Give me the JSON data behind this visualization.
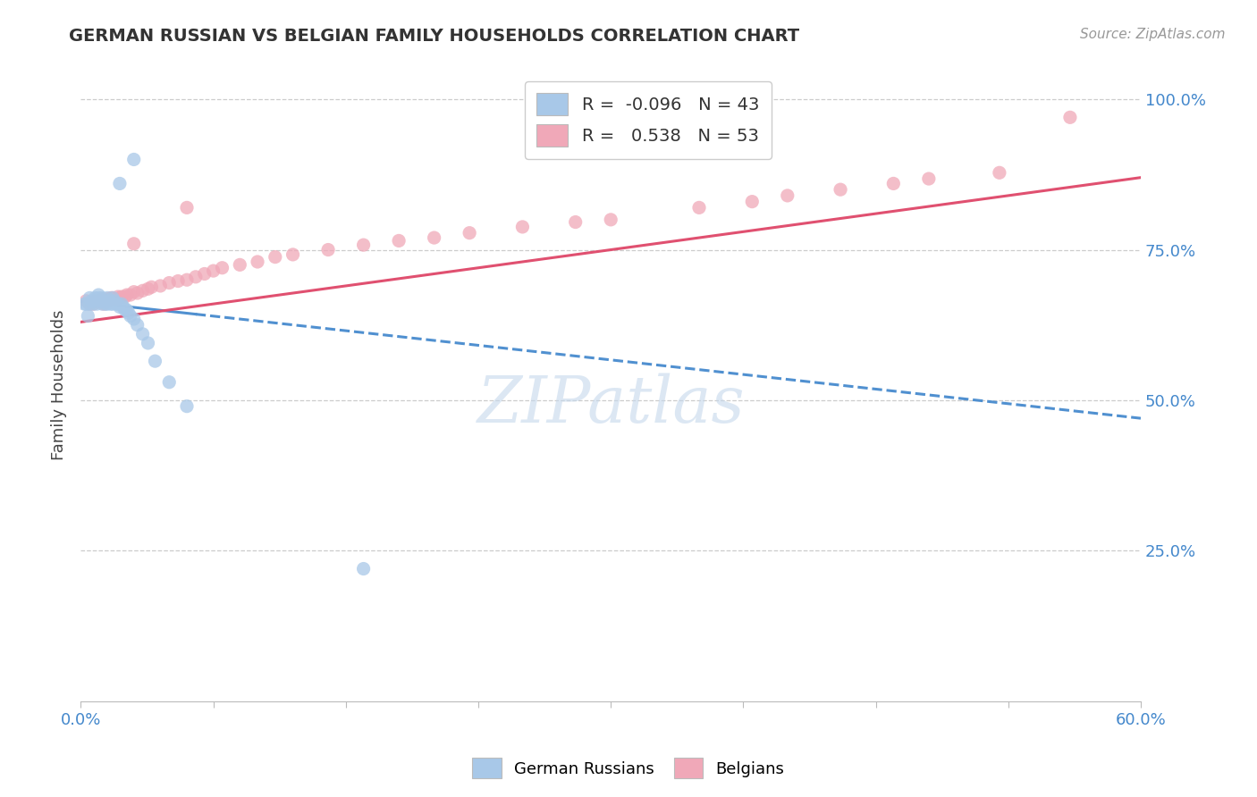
{
  "title": "GERMAN RUSSIAN VS BELGIAN FAMILY HOUSEHOLDS CORRELATION CHART",
  "source": "Source: ZipAtlas.com",
  "ylabel": "Family Households",
  "blue_color": "#a8c8e8",
  "pink_color": "#f0a8b8",
  "trend_blue_color": "#5090d0",
  "trend_pink_color": "#e05070",
  "watermark": "ZIPatlas",
  "blue_scatter_x": [
    0.002,
    0.003,
    0.004,
    0.005,
    0.005,
    0.006,
    0.007,
    0.008,
    0.008,
    0.009,
    0.01,
    0.01,
    0.011,
    0.012,
    0.012,
    0.013,
    0.014,
    0.015,
    0.015,
    0.016,
    0.017,
    0.018,
    0.018,
    0.019,
    0.02,
    0.021,
    0.022,
    0.023,
    0.024,
    0.025,
    0.026,
    0.027,
    0.028,
    0.03,
    0.032,
    0.035,
    0.038,
    0.042,
    0.05,
    0.06,
    0.022,
    0.03,
    0.16
  ],
  "blue_scatter_y": [
    0.66,
    0.66,
    0.64,
    0.66,
    0.67,
    0.665,
    0.66,
    0.67,
    0.665,
    0.66,
    0.67,
    0.675,
    0.665,
    0.66,
    0.67,
    0.665,
    0.66,
    0.67,
    0.66,
    0.665,
    0.66,
    0.66,
    0.67,
    0.665,
    0.66,
    0.66,
    0.655,
    0.66,
    0.655,
    0.65,
    0.65,
    0.645,
    0.64,
    0.635,
    0.625,
    0.61,
    0.595,
    0.565,
    0.53,
    0.49,
    0.86,
    0.9,
    0.22
  ],
  "pink_scatter_x": [
    0.003,
    0.005,
    0.007,
    0.008,
    0.01,
    0.012,
    0.013,
    0.015,
    0.016,
    0.017,
    0.018,
    0.02,
    0.021,
    0.022,
    0.023,
    0.025,
    0.026,
    0.028,
    0.03,
    0.032,
    0.035,
    0.038,
    0.04,
    0.045,
    0.05,
    0.055,
    0.06,
    0.065,
    0.07,
    0.075,
    0.08,
    0.09,
    0.1,
    0.11,
    0.12,
    0.14,
    0.16,
    0.18,
    0.2,
    0.22,
    0.25,
    0.28,
    0.3,
    0.35,
    0.38,
    0.4,
    0.43,
    0.46,
    0.48,
    0.52,
    0.03,
    0.06,
    0.56
  ],
  "pink_scatter_y": [
    0.665,
    0.66,
    0.66,
    0.665,
    0.665,
    0.668,
    0.66,
    0.668,
    0.665,
    0.67,
    0.67,
    0.668,
    0.672,
    0.67,
    0.672,
    0.672,
    0.675,
    0.675,
    0.68,
    0.678,
    0.682,
    0.685,
    0.688,
    0.69,
    0.695,
    0.698,
    0.7,
    0.705,
    0.71,
    0.715,
    0.72,
    0.725,
    0.73,
    0.738,
    0.742,
    0.75,
    0.758,
    0.765,
    0.77,
    0.778,
    0.788,
    0.796,
    0.8,
    0.82,
    0.83,
    0.84,
    0.85,
    0.86,
    0.868,
    0.878,
    0.76,
    0.82,
    0.97
  ],
  "xlim": [
    0.0,
    0.6
  ],
  "ylim": [
    0.0,
    1.05
  ],
  "blue_trend_x": [
    0.0,
    0.6
  ],
  "blue_trend_y": [
    0.664,
    0.47
  ],
  "pink_trend_x": [
    0.0,
    0.6
  ],
  "pink_trend_y": [
    0.63,
    0.87
  ],
  "figsize": [
    14.06,
    8.92
  ],
  "dpi": 100
}
